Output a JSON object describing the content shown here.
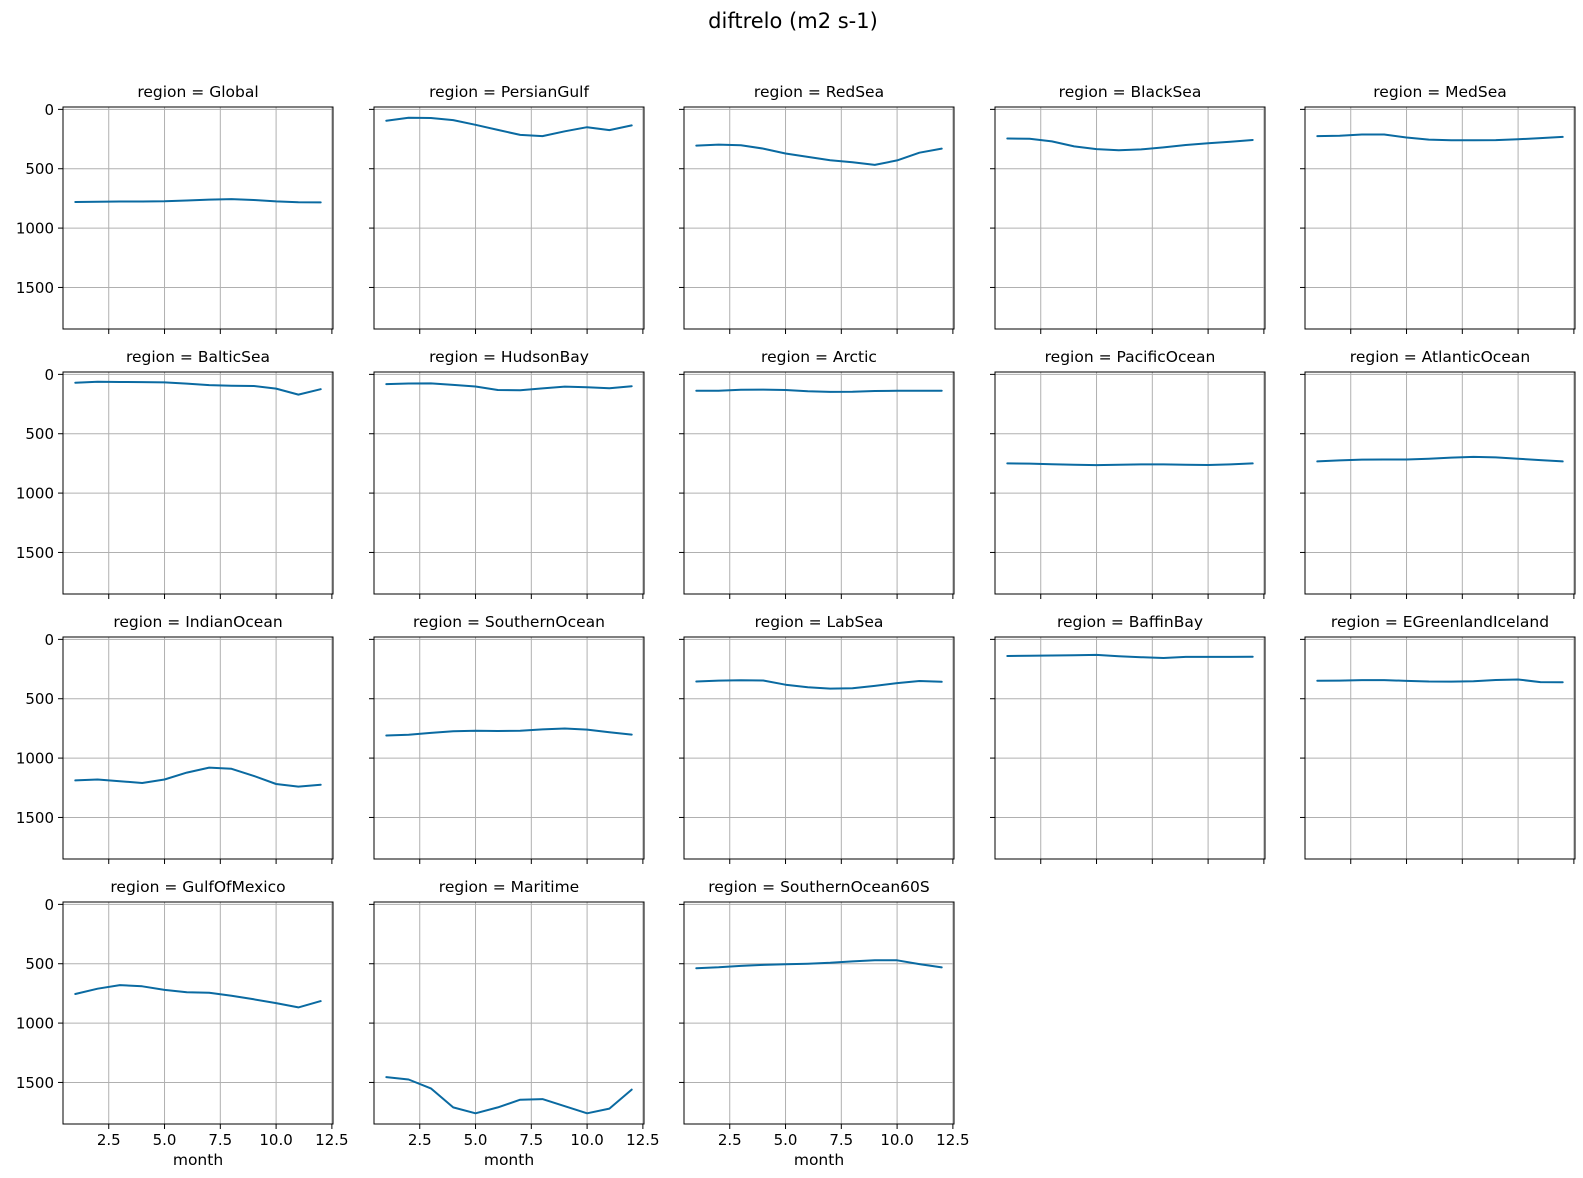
{
  "figure": {
    "title": "diftrelo (m2 s-1)",
    "line_color": "#0a6aa1"
  },
  "chart_data": {
    "type": "line",
    "xlabel": "month",
    "ylabel": "",
    "xlim": [
      0.45,
      12.55
    ],
    "ylim": [
      1850,
      -20
    ],
    "y_inverted": true,
    "grid": true,
    "xticks": [
      2.5,
      5.0,
      7.5,
      10.0,
      12.5
    ],
    "xtick_labels": [
      "2.5",
      "5.0",
      "7.5",
      "10.0",
      "12.5"
    ],
    "yticks": [
      0,
      500,
      1000,
      1500
    ],
    "ytick_labels": [
      "0",
      "500",
      "1000",
      "1500"
    ],
    "x": [
      1,
      2,
      3,
      4,
      5,
      6,
      7,
      8,
      9,
      10,
      11,
      12
    ],
    "panels": [
      {
        "title": "region = Global",
        "values": [
          780,
          778,
          776,
          776,
          774,
          768,
          760,
          756,
          763,
          775,
          783,
          784
        ]
      },
      {
        "title": "region = PersianGulf",
        "values": [
          95,
          70,
          73,
          90,
          130,
          173,
          215,
          225,
          185,
          150,
          175,
          135
        ]
      },
      {
        "title": "region = RedSea",
        "values": [
          305,
          297,
          303,
          330,
          372,
          400,
          428,
          446,
          468,
          430,
          365,
          330
        ]
      },
      {
        "title": "region = BlackSea",
        "values": [
          245,
          247,
          270,
          312,
          335,
          345,
          337,
          320,
          300,
          285,
          272,
          258
        ]
      },
      {
        "title": "region = MedSea",
        "values": [
          225,
          222,
          212,
          212,
          237,
          255,
          260,
          260,
          259,
          252,
          242,
          232
        ]
      },
      {
        "title": "region = BalticSea",
        "values": [
          70,
          62,
          64,
          65,
          68,
          78,
          90,
          95,
          98,
          120,
          170,
          125
        ]
      },
      {
        "title": "region = HudsonBay",
        "values": [
          82,
          77,
          76,
          89,
          102,
          132,
          133,
          118,
          103,
          109,
          117,
          100
        ]
      },
      {
        "title": "region = Arctic",
        "values": [
          138,
          138,
          130,
          128,
          132,
          142,
          148,
          146,
          140,
          138,
          138,
          138
        ]
      },
      {
        "title": "region = PacificOcean",
        "values": [
          750,
          752,
          757,
          762,
          764,
          761,
          758,
          758,
          761,
          763,
          758,
          750
        ]
      },
      {
        "title": "region = AtlanticOcean",
        "values": [
          733,
          725,
          718,
          717,
          717,
          710,
          701,
          695,
          699,
          710,
          722,
          733
        ]
      },
      {
        "title": "region = IndianOcean",
        "values": [
          1188,
          1180,
          1195,
          1210,
          1180,
          1122,
          1080,
          1090,
          1150,
          1218,
          1240,
          1225
        ]
      },
      {
        "title": "region = SouthernOcean",
        "values": [
          810,
          804,
          788,
          774,
          770,
          772,
          770,
          758,
          751,
          760,
          783,
          802
        ]
      },
      {
        "title": "region = LabSea",
        "values": [
          355,
          347,
          344,
          346,
          382,
          403,
          415,
          412,
          392,
          368,
          351,
          357
        ]
      },
      {
        "title": "region = BaffinBay",
        "values": [
          140,
          138,
          136,
          133,
          131,
          142,
          150,
          157,
          148,
          148,
          148,
          146
        ]
      },
      {
        "title": "region = EGreenlandIceland",
        "values": [
          348,
          347,
          343,
          343,
          350,
          355,
          356,
          353,
          342,
          338,
          360,
          361
        ]
      },
      {
        "title": "region = GulfOfMexico",
        "values": [
          755,
          710,
          680,
          690,
          720,
          740,
          745,
          770,
          800,
          832,
          868,
          815
        ]
      },
      {
        "title": "region = Maritime",
        "values": [
          1455,
          1475,
          1550,
          1710,
          1760,
          1710,
          1645,
          1640,
          1700,
          1760,
          1720,
          1560
        ]
      },
      {
        "title": "region = SouthernOcean60S",
        "values": [
          538,
          530,
          518,
          510,
          505,
          500,
          492,
          480,
          470,
          471,
          503,
          531
        ]
      }
    ]
  }
}
